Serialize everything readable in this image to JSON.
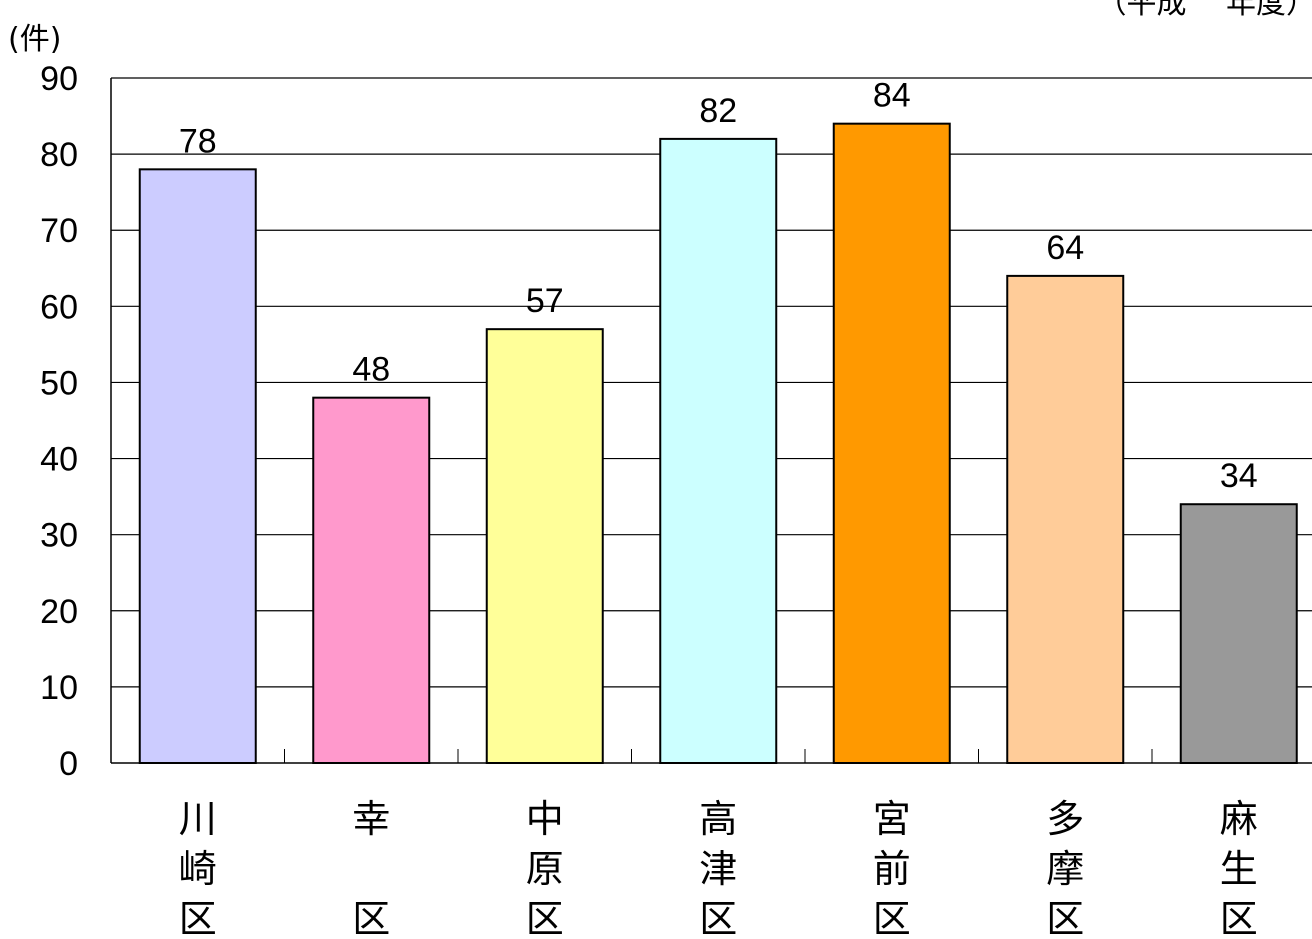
{
  "chart_data": {
    "type": "bar",
    "y_unit_label": "(件)",
    "period_label": "（平成　 年度）",
    "categories": [
      [
        "川",
        "崎",
        "区"
      ],
      [
        "幸",
        "",
        "区"
      ],
      [
        "中",
        "原",
        "区"
      ],
      [
        "高",
        "津",
        "区"
      ],
      [
        "宮",
        "前",
        "区"
      ],
      [
        "多",
        "摩",
        "区"
      ],
      [
        "麻",
        "生",
        "区"
      ]
    ],
    "values": [
      78,
      48,
      57,
      82,
      84,
      64,
      34
    ],
    "data_labels": [
      "78",
      "48",
      "57",
      "82",
      "84",
      "64",
      "34"
    ],
    "colors": [
      "#ccccff",
      "#ff99cc",
      "#ffff99",
      "#ccffff",
      "#ff9900",
      "#ffcc99",
      "#999999"
    ],
    "ylim": [
      0,
      90
    ],
    "yticks": [
      0,
      10,
      20,
      30,
      40,
      50,
      60,
      70,
      80,
      90
    ],
    "grid": true,
    "legend": "none"
  }
}
